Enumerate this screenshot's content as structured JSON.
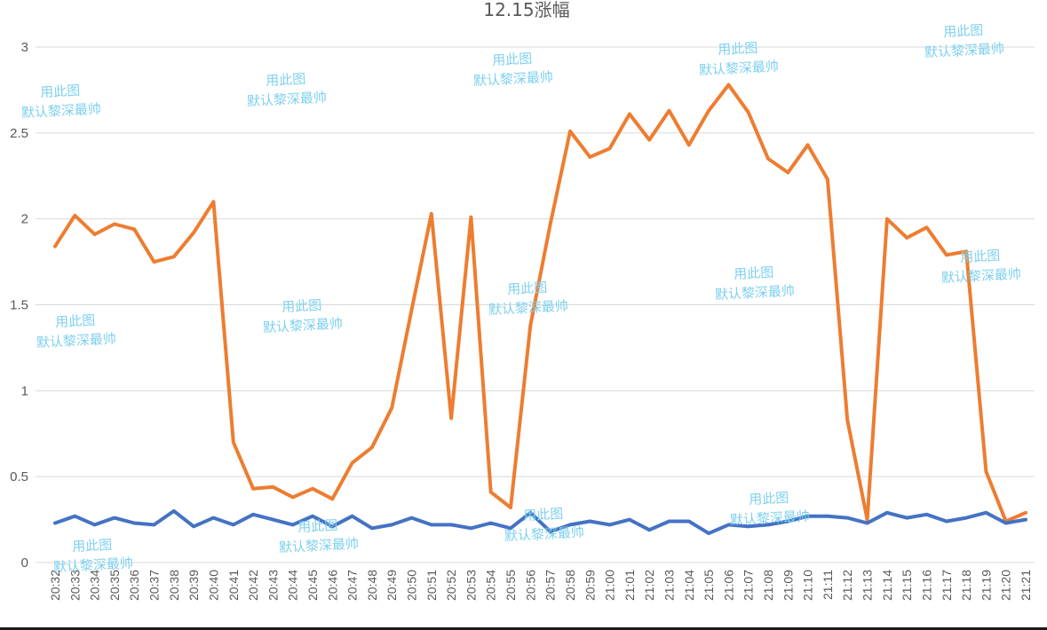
{
  "chart_data": {
    "type": "line",
    "title": "12.15涨幅",
    "xlabel": "",
    "ylabel": "",
    "ylim": [
      0,
      3
    ],
    "yticks": [
      "0",
      "0.5",
      "1",
      "1.5",
      "2",
      "2.5",
      "3"
    ],
    "grid": true,
    "legend": "none",
    "categories": [
      "20:32",
      "20:33",
      "20:34",
      "20:35",
      "20:36",
      "20:37",
      "20:38",
      "20:39",
      "20:40",
      "20:41",
      "20:42",
      "20:43",
      "20:44",
      "20:45",
      "20:46",
      "20:47",
      "20:48",
      "20:49",
      "20:50",
      "20:51",
      "20:52",
      "20:53",
      "20:54",
      "20:55",
      "20:56",
      "20:57",
      "20:58",
      "20:59",
      "21:00",
      "21:01",
      "21:02",
      "21:03",
      "21:04",
      "21:05",
      "21:06",
      "21:07",
      "21:08",
      "21:09",
      "21:10",
      "21:11",
      "21:12",
      "21:13",
      "21:14",
      "21:15",
      "21:16",
      "21:17",
      "21:18",
      "21:19",
      "21:20",
      "21:21"
    ],
    "series": [
      {
        "color": "#ed7d31",
        "values": [
          1.84,
          2.02,
          1.91,
          1.97,
          1.94,
          1.75,
          1.78,
          1.92,
          2.1,
          0.7,
          0.43,
          0.44,
          0.38,
          0.43,
          0.37,
          0.58,
          0.67,
          0.9,
          1.47,
          2.03,
          0.84,
          2.01,
          0.41,
          0.32,
          1.38,
          1.97,
          2.51,
          2.36,
          2.41,
          2.61,
          2.46,
          2.63,
          2.43,
          2.63,
          2.78,
          2.62,
          2.35,
          2.27,
          2.43,
          2.23,
          0.83,
          0.25,
          2.0,
          1.89,
          1.95,
          1.79,
          1.81,
          0.53,
          0.24,
          0.29
        ]
      },
      {
        "color": "#4472c4",
        "values": [
          0.23,
          0.27,
          0.22,
          0.26,
          0.23,
          0.22,
          0.3,
          0.21,
          0.26,
          0.22,
          0.28,
          0.25,
          0.22,
          0.27,
          0.21,
          0.27,
          0.2,
          0.22,
          0.26,
          0.22,
          0.22,
          0.2,
          0.23,
          0.2,
          0.29,
          0.18,
          0.22,
          0.24,
          0.22,
          0.25,
          0.19,
          0.24,
          0.24,
          0.17,
          0.22,
          0.21,
          0.22,
          0.24,
          0.27,
          0.27,
          0.26,
          0.23,
          0.29,
          0.26,
          0.28,
          0.24,
          0.26,
          0.29,
          0.23,
          0.25
        ]
      }
    ]
  },
  "watermarks": [
    {
      "line1": "用此图",
      "line2": "默认黎深最帅"
    },
    {
      "line1": "用此图",
      "line2": "默认黎深最帅"
    },
    {
      "line1": "用此图",
      "line2": "默认黎深最帅"
    },
    {
      "line1": "用此图",
      "line2": "默认黎深最帅"
    },
    {
      "line1": "用此图",
      "line2": "默认黎深最帅"
    },
    {
      "line1": "用此图",
      "line2": "默认黎深最帅"
    },
    {
      "line1": "用此图",
      "line2": "默认黎深最帅"
    },
    {
      "line1": "用此图",
      "line2": "默认黎深最帅"
    },
    {
      "line1": "用此图",
      "line2": "默认黎深最帅"
    },
    {
      "line1": "用此图",
      "line2": "默认黎深最帅"
    },
    {
      "line1": "用此图",
      "line2": "默认黎深最帅"
    },
    {
      "line1": "用此图",
      "line2": "默认黎深最帅"
    },
    {
      "line1": "用此图",
      "line2": "默认黎深最帅"
    },
    {
      "line1": "用此图",
      "line2": "默认黎深最帅"
    }
  ]
}
